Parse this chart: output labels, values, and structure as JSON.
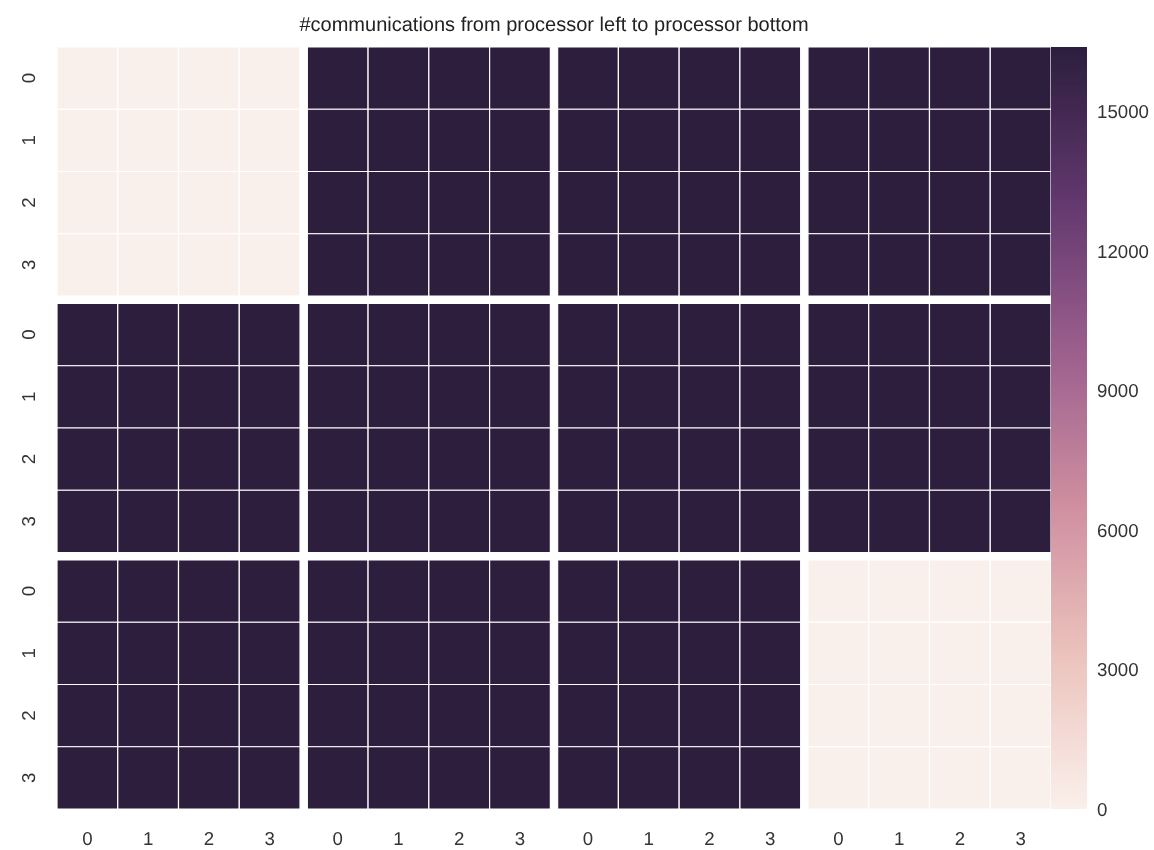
{
  "chart_data": {
    "type": "heatmap",
    "title": "#communications from processor left to processor bottom",
    "categories": [
      "0",
      "1",
      "2",
      "3",
      "0",
      "1",
      "2",
      "3",
      "0",
      "1",
      "2",
      "3",
      "0",
      "1",
      "2",
      "3"
    ],
    "y_categories": [
      "0",
      "1",
      "2",
      "3",
      "0",
      "1",
      "2",
      "3",
      "0",
      "1",
      "2",
      "3"
    ],
    "cells": [
      [
        0,
        0,
        0,
        0,
        16384,
        16384,
        16384,
        16384,
        16384,
        16384,
        16384,
        16384,
        16384,
        16384,
        16384,
        16384
      ],
      [
        0,
        0,
        0,
        0,
        16384,
        16384,
        16384,
        16384,
        16384,
        16384,
        16384,
        16384,
        16384,
        16384,
        16384,
        16384
      ],
      [
        0,
        0,
        0,
        0,
        16384,
        16384,
        16384,
        16384,
        16384,
        16384,
        16384,
        16384,
        16384,
        16384,
        16384,
        16384
      ],
      [
        0,
        0,
        0,
        0,
        16384,
        16384,
        16384,
        16384,
        16384,
        16384,
        16384,
        16384,
        16384,
        16384,
        16384,
        16384
      ],
      [
        16384,
        16384,
        16384,
        16384,
        16384,
        16384,
        16384,
        16384,
        16384,
        16384,
        16384,
        16384,
        16384,
        16384,
        16384,
        16384
      ],
      [
        16384,
        16384,
        16384,
        16384,
        16384,
        16384,
        16384,
        16384,
        16384,
        16384,
        16384,
        16384,
        16384,
        16384,
        16384,
        16384
      ],
      [
        16384,
        16384,
        16384,
        16384,
        16384,
        16384,
        16384,
        16384,
        16384,
        16384,
        16384,
        16384,
        16384,
        16384,
        16384,
        16384
      ],
      [
        16384,
        16384,
        16384,
        16384,
        16384,
        16384,
        16384,
        16384,
        16384,
        16384,
        16384,
        16384,
        16384,
        16384,
        16384,
        16384
      ],
      [
        16384,
        16384,
        16384,
        16384,
        16384,
        16384,
        16384,
        16384,
        16384,
        16384,
        16384,
        16384,
        0,
        0,
        0,
        0
      ],
      [
        16384,
        16384,
        16384,
        16384,
        16384,
        16384,
        16384,
        16384,
        16384,
        16384,
        16384,
        16384,
        0,
        0,
        0,
        0
      ],
      [
        16384,
        16384,
        16384,
        16384,
        16384,
        16384,
        16384,
        16384,
        16384,
        16384,
        16384,
        16384,
        0,
        0,
        0,
        0
      ],
      [
        16384,
        16384,
        16384,
        16384,
        16384,
        16384,
        16384,
        16384,
        16384,
        16384,
        16384,
        16384,
        0,
        0,
        0,
        0
      ]
    ],
    "clim": [
      0,
      16384
    ],
    "cticks": [
      0,
      3000,
      6000,
      9000,
      12000,
      15000
    ]
  }
}
